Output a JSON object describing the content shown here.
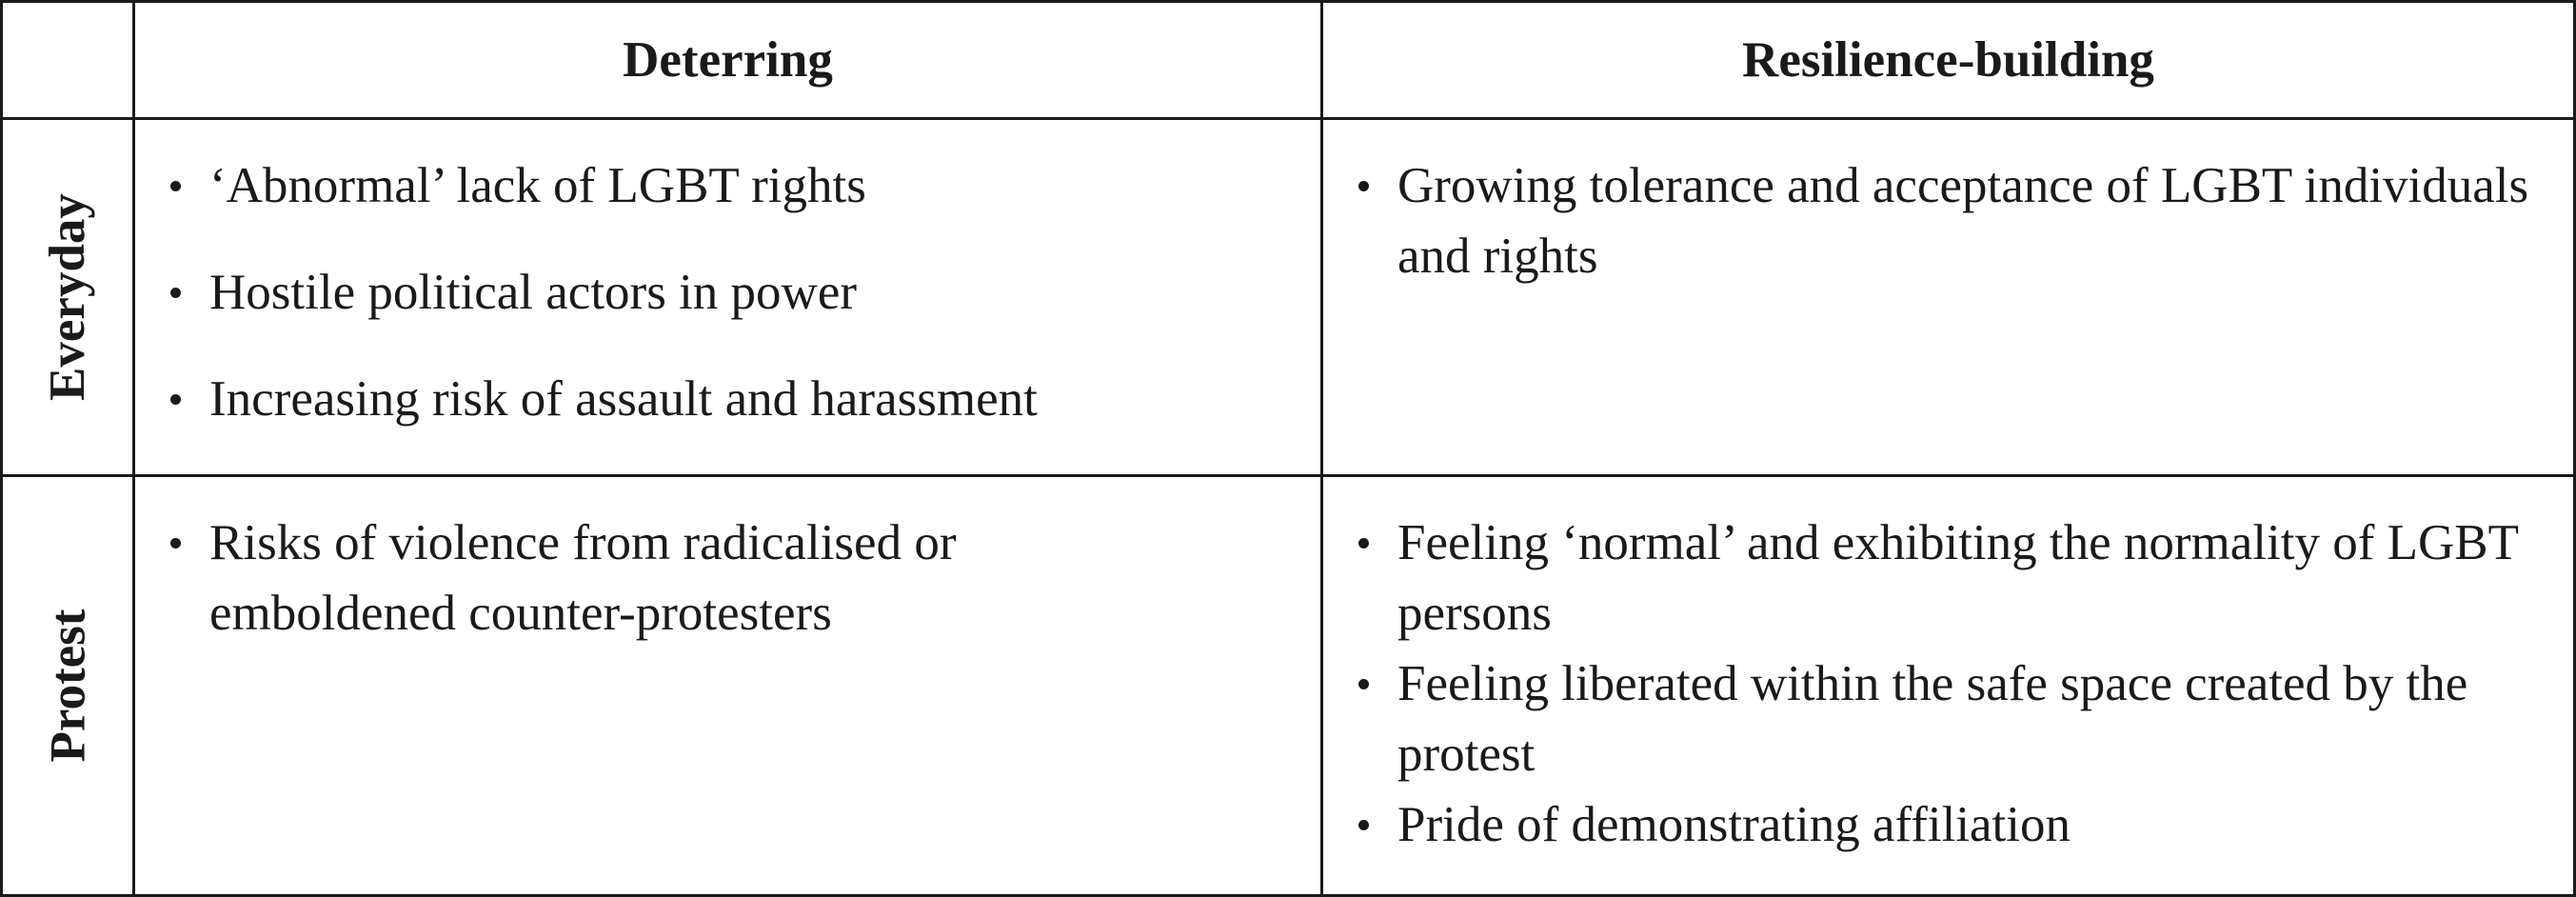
{
  "table": {
    "columns": [
      "",
      "Deterring",
      "Resilience-building"
    ],
    "rows": [
      {
        "label": "Everyday",
        "deterring": [
          "‘Abnormal’ lack of LGBT rights",
          "Hostile political actors in power",
          "Increasing risk of assault and harassment"
        ],
        "resilience": [
          "Growing tolerance and acceptance of LGBT individuals and rights"
        ]
      },
      {
        "label": "Protest",
        "deterring": [
          "Risks of violence from radicalised or emboldened counter-protesters"
        ],
        "resilience": [
          "Feeling ‘normal’ and exhibiting the normality of LGBT persons",
          "Feeling liberated within the safe space created by the protest",
          "Pride of demonstrating affiliation"
        ]
      }
    ]
  }
}
